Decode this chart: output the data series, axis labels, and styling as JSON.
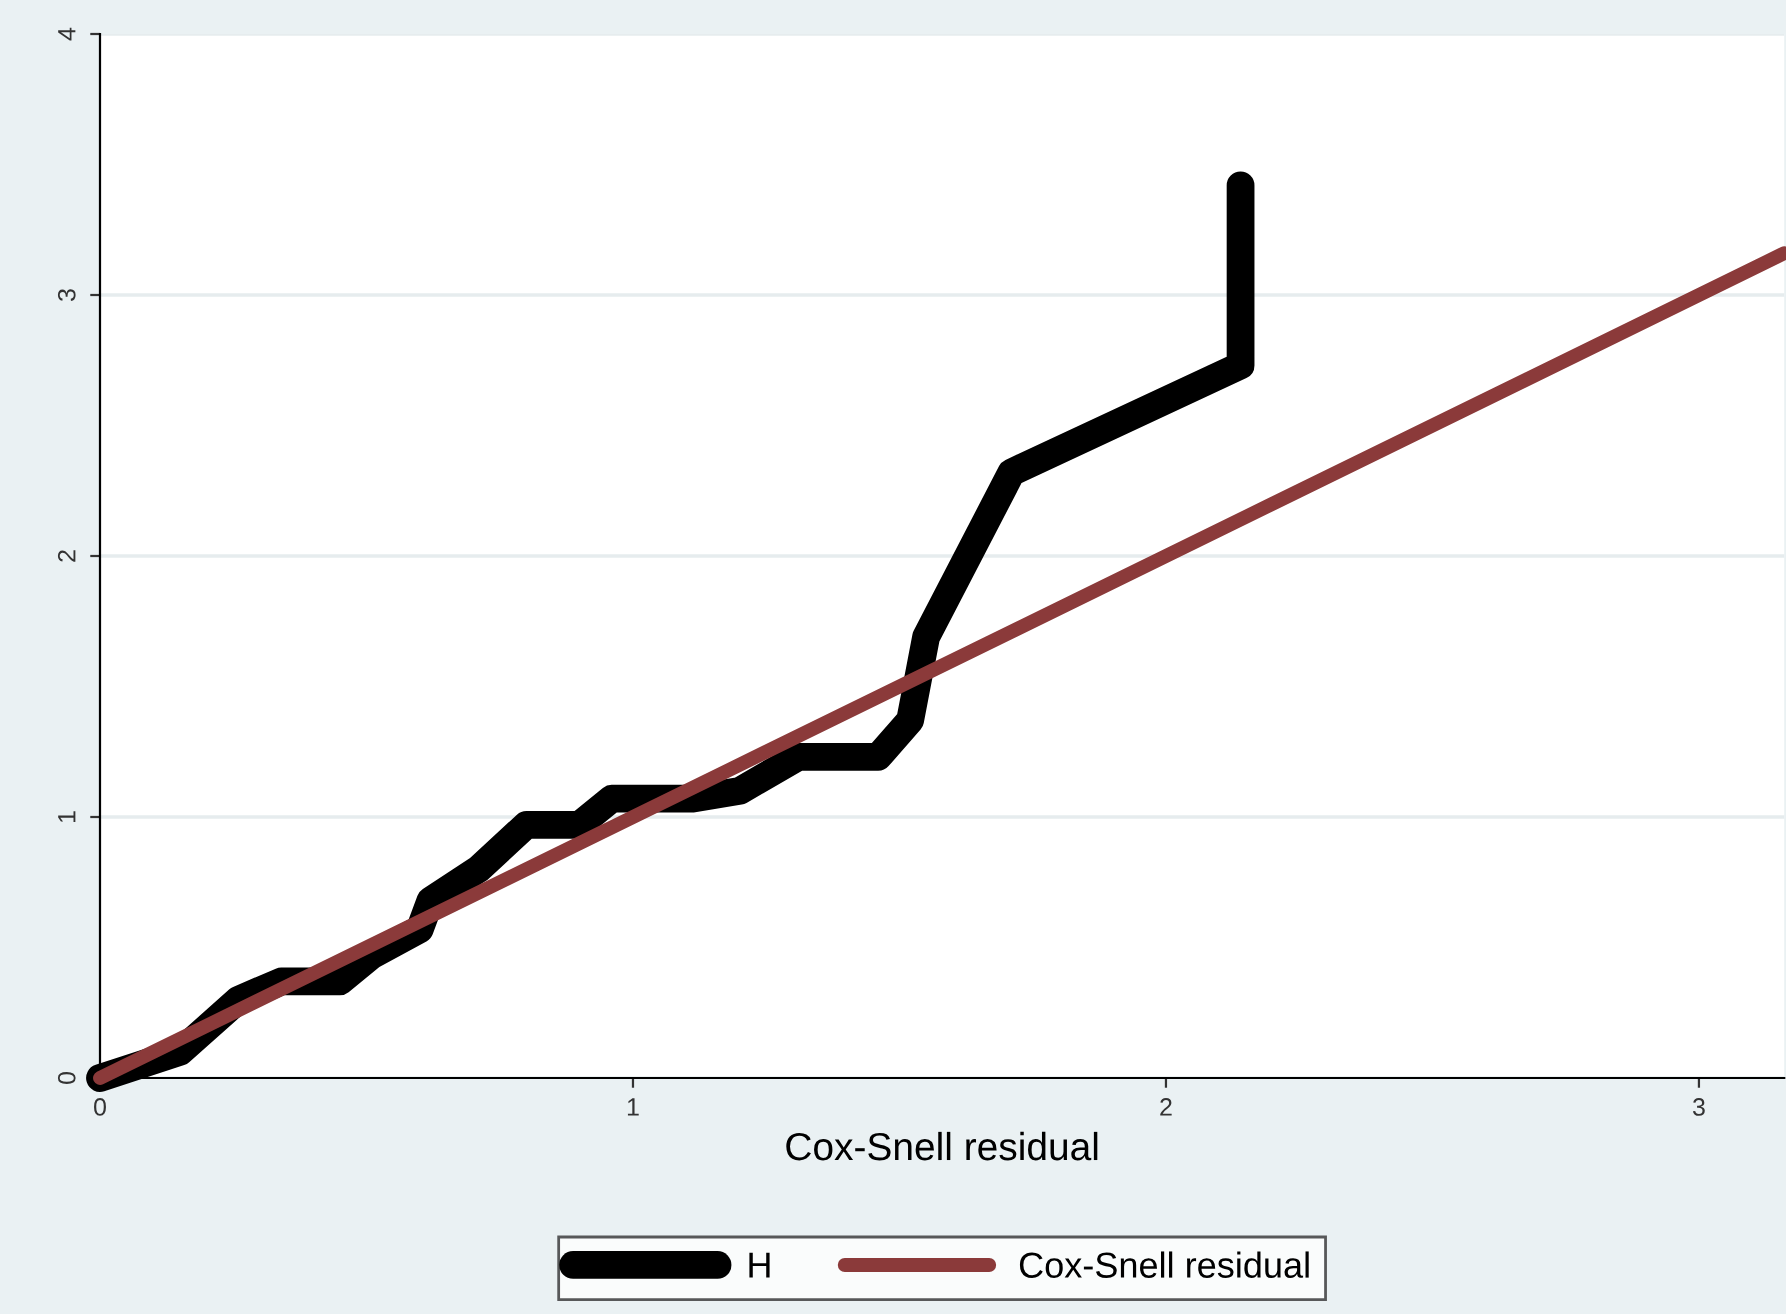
{
  "chart_data": {
    "type": "line",
    "xlabel": "Cox-Snell residual",
    "xlim": [
      0,
      3.16
    ],
    "ylim": [
      0,
      4
    ],
    "xticks": [
      0,
      1,
      2,
      3
    ],
    "yticks": [
      0,
      1,
      2,
      3,
      4
    ],
    "grid": "y",
    "legend": "bottom",
    "line_style": "solid",
    "marker": "none",
    "series": [
      {
        "name": "H",
        "color": "#000000",
        "x": [
          0,
          0.15,
          0.26,
          0.34,
          0.45,
          0.51,
          0.6,
          0.62,
          0.71,
          0.8,
          0.9,
          0.96,
          1.11,
          1.2,
          1.31,
          1.46,
          1.52,
          1.55,
          1.71,
          2.14,
          2.14
        ],
        "values": [
          0,
          0.1,
          0.3,
          0.37,
          0.37,
          0.47,
          0.57,
          0.68,
          0.8,
          0.97,
          0.97,
          1.07,
          1.07,
          1.1,
          1.23,
          1.23,
          1.37,
          1.69,
          2.32,
          2.73,
          3.42
        ]
      },
      {
        "name": "Cox-Snell residual",
        "color": "#8b3a3a",
        "x": [
          0,
          3.16
        ],
        "values": [
          0,
          3.16
        ]
      }
    ]
  }
}
